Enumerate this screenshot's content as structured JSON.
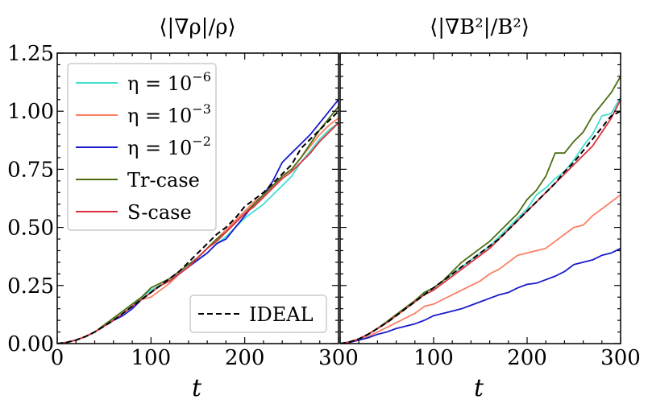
{
  "chart_data": [
    {
      "type": "line",
      "title": "⟨|∇ρ|/ρ⟩",
      "xlabel": "t",
      "ylabel": "",
      "xlim": [
        0,
        300
      ],
      "ylim": [
        0,
        1.25
      ],
      "xticks": [
        "0",
        "100",
        "200",
        "300"
      ],
      "yticks": [
        "0.00",
        "0.25",
        "0.50",
        "0.75",
        "1.00",
        "1.25"
      ],
      "x": [
        0,
        10,
        20,
        30,
        40,
        50,
        60,
        70,
        80,
        90,
        100,
        110,
        120,
        130,
        140,
        150,
        160,
        170,
        180,
        190,
        200,
        210,
        220,
        230,
        240,
        250,
        260,
        270,
        280,
        290,
        300
      ],
      "series": [
        {
          "name": "η = 10⁻⁶",
          "color": "#40e0d0",
          "values": [
            0.0,
            0.005,
            0.015,
            0.03,
            0.05,
            0.075,
            0.1,
            0.13,
            0.16,
            0.2,
            0.23,
            0.25,
            0.27,
            0.3,
            0.33,
            0.36,
            0.39,
            0.43,
            0.46,
            0.5,
            0.54,
            0.57,
            0.6,
            0.64,
            0.68,
            0.72,
            0.78,
            0.83,
            0.88,
            0.92,
            0.95
          ]
        },
        {
          "name": "η = 10⁻³",
          "color": "#fa8064",
          "values": [
            0.0,
            0.005,
            0.015,
            0.03,
            0.05,
            0.075,
            0.1,
            0.13,
            0.16,
            0.19,
            0.2,
            0.23,
            0.26,
            0.3,
            0.33,
            0.37,
            0.41,
            0.45,
            0.49,
            0.53,
            0.57,
            0.61,
            0.64,
            0.68,
            0.72,
            0.75,
            0.8,
            0.85,
            0.9,
            0.94,
            0.97
          ]
        },
        {
          "name": "η = 10⁻²",
          "color": "#1a1acd",
          "values": [
            0.0,
            0.005,
            0.015,
            0.03,
            0.05,
            0.075,
            0.1,
            0.12,
            0.15,
            0.19,
            0.22,
            0.25,
            0.27,
            0.3,
            0.33,
            0.36,
            0.39,
            0.43,
            0.45,
            0.5,
            0.55,
            0.6,
            0.64,
            0.7,
            0.78,
            0.82,
            0.86,
            0.9,
            0.95,
            1.0,
            1.05
          ]
        },
        {
          "name": "Tr-case",
          "color": "#4a6f10",
          "values": [
            0.0,
            0.005,
            0.015,
            0.03,
            0.05,
            0.08,
            0.11,
            0.14,
            0.17,
            0.2,
            0.24,
            0.26,
            0.28,
            0.31,
            0.34,
            0.37,
            0.41,
            0.45,
            0.48,
            0.52,
            0.56,
            0.6,
            0.64,
            0.68,
            0.72,
            0.75,
            0.8,
            0.86,
            0.92,
            0.97,
            1.02
          ]
        },
        {
          "name": "S-case",
          "color": "#dc3040",
          "values": [
            0.0,
            0.005,
            0.015,
            0.03,
            0.05,
            0.075,
            0.1,
            0.13,
            0.16,
            0.19,
            0.22,
            0.25,
            0.27,
            0.3,
            0.33,
            0.37,
            0.41,
            0.44,
            0.48,
            0.52,
            0.56,
            0.59,
            0.63,
            0.67,
            0.71,
            0.74,
            0.78,
            0.82,
            0.87,
            0.91,
            0.95
          ]
        },
        {
          "name": "IDEAL",
          "color": "#000000",
          "dashed": true,
          "values": [
            0.0,
            0.005,
            0.015,
            0.03,
            0.05,
            0.075,
            0.1,
            0.13,
            0.16,
            0.19,
            0.22,
            0.25,
            0.28,
            0.31,
            0.35,
            0.39,
            0.43,
            0.47,
            0.5,
            0.54,
            0.59,
            0.62,
            0.65,
            0.69,
            0.73,
            0.77,
            0.84,
            0.88,
            0.92,
            0.96,
            1.0
          ]
        }
      ],
      "legend": {
        "upper": [
          "η = 10",
          "η = 10",
          "η = 10",
          "Tr-case",
          "S-case"
        ],
        "upper_exponents": [
          "−6",
          "−3",
          "−2",
          "",
          ""
        ],
        "lower": [
          "IDEAL"
        ]
      }
    },
    {
      "type": "line",
      "title": "⟨|∇B²|/B²⟩",
      "xlabel": "t",
      "ylabel": "",
      "xlim": [
        0,
        300
      ],
      "ylim": [
        0,
        1.25
      ],
      "xticks": [
        "100",
        "200",
        "300"
      ],
      "x": [
        0,
        10,
        20,
        30,
        40,
        50,
        60,
        70,
        80,
        90,
        100,
        110,
        120,
        130,
        140,
        150,
        160,
        170,
        180,
        190,
        200,
        210,
        220,
        230,
        240,
        250,
        260,
        270,
        280,
        290,
        300
      ],
      "series": [
        {
          "name": "η = 10⁻⁶",
          "color": "#40e0d0",
          "values": [
            0.0,
            0.007,
            0.02,
            0.04,
            0.065,
            0.09,
            0.12,
            0.15,
            0.18,
            0.22,
            0.24,
            0.27,
            0.3,
            0.33,
            0.36,
            0.39,
            0.42,
            0.46,
            0.5,
            0.54,
            0.58,
            0.64,
            0.67,
            0.71,
            0.74,
            0.79,
            0.85,
            0.9,
            0.98,
            0.99,
            1.06
          ]
        },
        {
          "name": "η = 10⁻³",
          "color": "#fa8064",
          "values": [
            0.0,
            0.005,
            0.015,
            0.03,
            0.05,
            0.07,
            0.09,
            0.11,
            0.13,
            0.16,
            0.17,
            0.19,
            0.21,
            0.23,
            0.25,
            0.27,
            0.3,
            0.32,
            0.35,
            0.38,
            0.39,
            0.4,
            0.41,
            0.44,
            0.47,
            0.5,
            0.51,
            0.55,
            0.58,
            0.61,
            0.64
          ]
        },
        {
          "name": "η = 10⁻²",
          "color": "#1a1acd",
          "values": [
            0.0,
            0.005,
            0.015,
            0.025,
            0.04,
            0.05,
            0.065,
            0.075,
            0.085,
            0.1,
            0.12,
            0.13,
            0.14,
            0.15,
            0.165,
            0.18,
            0.195,
            0.21,
            0.22,
            0.24,
            0.255,
            0.26,
            0.275,
            0.29,
            0.31,
            0.34,
            0.35,
            0.36,
            0.38,
            0.39,
            0.41
          ]
        },
        {
          "name": "Tr-case",
          "color": "#4a6f10",
          "values": [
            0.0,
            0.007,
            0.02,
            0.04,
            0.065,
            0.095,
            0.125,
            0.155,
            0.185,
            0.22,
            0.24,
            0.27,
            0.31,
            0.35,
            0.38,
            0.41,
            0.44,
            0.48,
            0.52,
            0.56,
            0.62,
            0.66,
            0.72,
            0.82,
            0.82,
            0.87,
            0.91,
            0.98,
            1.03,
            1.08,
            1.15
          ]
        },
        {
          "name": "S-case",
          "color": "#dc3040",
          "values": [
            0.0,
            0.007,
            0.02,
            0.04,
            0.065,
            0.09,
            0.12,
            0.15,
            0.18,
            0.21,
            0.23,
            0.26,
            0.29,
            0.32,
            0.35,
            0.38,
            0.41,
            0.45,
            0.49,
            0.53,
            0.57,
            0.61,
            0.65,
            0.69,
            0.73,
            0.77,
            0.81,
            0.85,
            0.91,
            0.97,
            1.05
          ]
        },
        {
          "name": "IDEAL",
          "color": "#000000",
          "dashed": true,
          "values": [
            0.0,
            0.007,
            0.02,
            0.04,
            0.065,
            0.09,
            0.12,
            0.15,
            0.18,
            0.21,
            0.24,
            0.27,
            0.3,
            0.33,
            0.36,
            0.39,
            0.42,
            0.45,
            0.49,
            0.53,
            0.57,
            0.61,
            0.65,
            0.69,
            0.74,
            0.78,
            0.83,
            0.88,
            0.93,
            0.98,
            1.0
          ]
        }
      ]
    }
  ]
}
